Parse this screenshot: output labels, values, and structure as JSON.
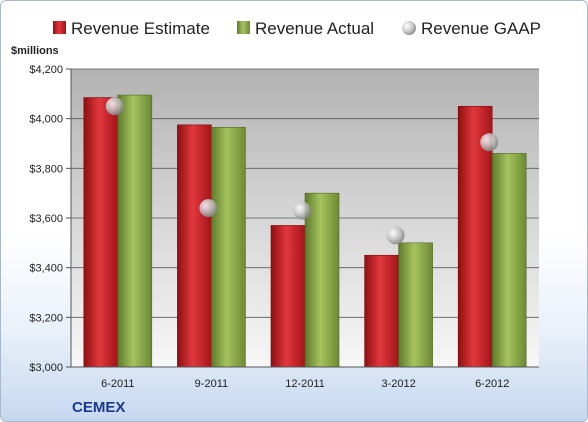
{
  "company": "CEMEX",
  "unit_label": "$millions",
  "chart_data": {
    "type": "bar",
    "categories": [
      "6-2011",
      "9-2011",
      "12-2011",
      "3-2012",
      "6-2012"
    ],
    "series": [
      {
        "name": "Revenue Estimate",
        "kind": "bar",
        "color": "#cc1f24",
        "values": [
          4085,
          3975,
          3570,
          3450,
          4050
        ]
      },
      {
        "name": "Revenue Actual",
        "kind": "bar",
        "color": "#8aa84a",
        "values": [
          4095,
          3965,
          3700,
          3500,
          3860
        ]
      },
      {
        "name": "Revenue GAAP",
        "kind": "marker",
        "color": "#b8b8b8",
        "values": [
          4050,
          3640,
          3630,
          3530,
          3905
        ]
      }
    ],
    "ylim": [
      3000,
      4200
    ],
    "yticks": [
      3000,
      3200,
      3400,
      3600,
      3800,
      4000,
      4200
    ],
    "ytick_labels": [
      "$3,000",
      "$3,200",
      "$3,400",
      "$3,600",
      "$3,800",
      "$4,000",
      "$4,200"
    ],
    "grid": true,
    "legend_position": "top"
  }
}
